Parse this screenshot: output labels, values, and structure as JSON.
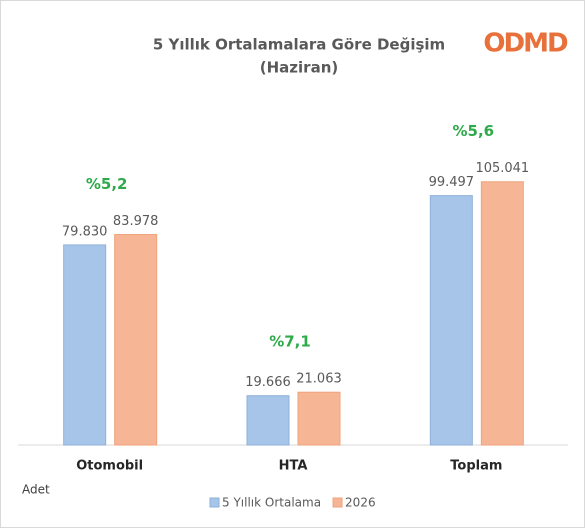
{
  "chart_data": {
    "type": "bar",
    "title": "5 Yıllık Ortalamalara Göre Değişim",
    "subtitle": "(Haziran)",
    "logo": "ODMD",
    "unit_label": "Adet",
    "categories": [
      "Otomobil",
      "HTA",
      "Toplam"
    ],
    "series": [
      {
        "name": "5 Yıllık Ortalama",
        "color": "#a7c5e8",
        "values": [
          79830,
          19666,
          99497
        ],
        "value_labels": [
          "79.830",
          "19.666",
          "99.497"
        ]
      },
      {
        "name": "2026",
        "color": "#f6b594",
        "values": [
          83978,
          21063,
          105041
        ],
        "value_labels": [
          "83.978",
          "21.063",
          "105.041"
        ]
      }
    ],
    "annotations": [
      "%5,2",
      "%7,1",
      "%5,6"
    ],
    "annotation_color": "#2eaa4a",
    "ylim": [
      0,
      160000
    ]
  }
}
